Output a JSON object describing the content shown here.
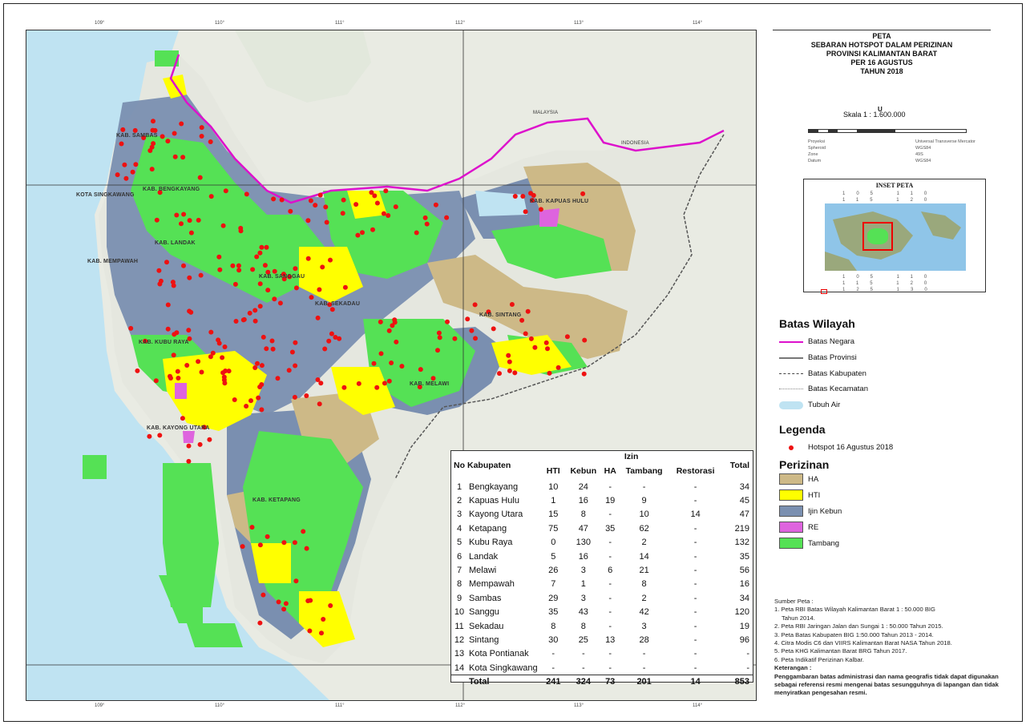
{
  "title": {
    "lines": [
      "PETA",
      "SEBARAN HOTSPOT DALAM PERIZINAN",
      "PROVINSI KALIMANTAN BARAT",
      "PER 16 AGUSTUS",
      "TAHUN 2018"
    ]
  },
  "north_label": "U",
  "scale": "Skala 1 : 1.600.000",
  "inset": {
    "title": "INSET PETA"
  },
  "map": {
    "labels": [
      "KAB. SAMBAS",
      "KOTA SINGKAWANG",
      "KAB. BENGKAYANG",
      "KAB. LANDAK",
      "KAB. MEMPAWAH",
      "KAB. KUBU RAYA",
      "KAB. SANGGAU",
      "KAB. SEKADAU",
      "KAB. SINTANG",
      "KAB. MELAWI",
      "KAB. KAYONG UTARA",
      "KAB. KETAPANG",
      "KAB. KAPUAS HULU",
      "MALAYSIA",
      "INDONESIA"
    ],
    "colors": {
      "ha": "#cdb987",
      "hti": "#ffff00",
      "ijin_kebun": "#7a8fb0",
      "re": "#de64de",
      "tambang": "#55e155",
      "hotspot": "#ee1111",
      "border_negara": "#dd11cc",
      "land": "#e9ebe3",
      "sea": "#bfe3f2"
    }
  },
  "table": {
    "header": {
      "no": "No",
      "kab": "Kabupaten",
      "izin": "Izin",
      "hti": "HTI",
      "kebun": "Kebun",
      "ha": "HA",
      "tambang": "Tambang",
      "restorasi": "Restorasi",
      "total": "Total"
    },
    "rows": [
      {
        "no": "1",
        "kab": "Bengkayang",
        "hti": "10",
        "kebun": "24",
        "ha": "-",
        "tambang": "-",
        "restorasi": "-",
        "total": "34"
      },
      {
        "no": "2",
        "kab": "Kapuas Hulu",
        "hti": "1",
        "kebun": "16",
        "ha": "19",
        "tambang": "9",
        "restorasi": "-",
        "total": "45"
      },
      {
        "no": "3",
        "kab": "Kayong Utara",
        "hti": "15",
        "kebun": "8",
        "ha": "-",
        "tambang": "10",
        "restorasi": "14",
        "total": "47"
      },
      {
        "no": "4",
        "kab": "Ketapang",
        "hti": "75",
        "kebun": "47",
        "ha": "35",
        "tambang": "62",
        "restorasi": "-",
        "total": "219"
      },
      {
        "no": "5",
        "kab": "Kubu Raya",
        "hti": "0",
        "kebun": "130",
        "ha": "-",
        "tambang": "2",
        "restorasi": "-",
        "total": "132"
      },
      {
        "no": "6",
        "kab": "Landak",
        "hti": "5",
        "kebun": "16",
        "ha": "-",
        "tambang": "14",
        "restorasi": "-",
        "total": "35"
      },
      {
        "no": "7",
        "kab": "Melawi",
        "hti": "26",
        "kebun": "3",
        "ha": "6",
        "tambang": "21",
        "restorasi": "-",
        "total": "56"
      },
      {
        "no": "8",
        "kab": "Mempawah",
        "hti": "7",
        "kebun": "1",
        "ha": "-",
        "tambang": "8",
        "restorasi": "-",
        "total": "16"
      },
      {
        "no": "9",
        "kab": "Sambas",
        "hti": "29",
        "kebun": "3",
        "ha": "-",
        "tambang": "2",
        "restorasi": "-",
        "total": "34"
      },
      {
        "no": "10",
        "kab": "Sanggu",
        "hti": "35",
        "kebun": "43",
        "ha": "-",
        "tambang": "42",
        "restorasi": "-",
        "total": "120"
      },
      {
        "no": "11",
        "kab": "Sekadau",
        "hti": "8",
        "kebun": "8",
        "ha": "-",
        "tambang": "3",
        "restorasi": "-",
        "total": "19"
      },
      {
        "no": "12",
        "kab": "Sintang",
        "hti": "30",
        "kebun": "25",
        "ha": "13",
        "tambang": "28",
        "restorasi": "-",
        "total": "96"
      },
      {
        "no": "13",
        "kab": "Kota Pontianak",
        "hti": "-",
        "kebun": "-",
        "ha": "-",
        "tambang": "-",
        "restorasi": "-",
        "total": "-"
      },
      {
        "no": "14",
        "kab": "Kota Singkawang",
        "hti": "-",
        "kebun": "-",
        "ha": "-",
        "tambang": "-",
        "restorasi": "-",
        "total": "-"
      }
    ],
    "total": {
      "label": "Total",
      "hti": "241",
      "kebun": "324",
      "ha": "73",
      "tambang": "201",
      "restorasi": "14",
      "total": "853"
    }
  },
  "legend": {
    "batas_title": "Batas Wilayah",
    "batas_negara": "Batas Negara",
    "batas_provinsi": "Batas Provinsi",
    "batas_kabupaten": "Batas Kabupaten",
    "batas_kecamatan": "Batas Kecamatan",
    "tubuh_air": "Tubuh Air",
    "legenda_title": "Legenda",
    "hotspot": "Hotspot 16 Agustus 2018",
    "perizinan_title": "Perizinan",
    "ha": "HA",
    "hti": "HTI",
    "ijin_kebun": "Ijin Kebun",
    "re": "RE",
    "tambang": "Tambang"
  },
  "sources": {
    "title": "Sumber Peta :",
    "items": [
      "1.  Peta RBI Batas Wilayah Kalimantan Barat 1 : 50.000 BIG",
      "    Tahun 2014.",
      "2. Peta RBI Jaringan Jalan dan Sungai 1 : 50.000 Tahun 2015.",
      "3. Peta Batas Kabupaten BIG 1:50.000 Tahun 2013 - 2014.",
      "4. Citra Modis C6 dan VIIRS Kalimantan Barat NASA Tahun 2018.",
      "5. Peta KHG Kalimantan Barat BRG Tahun 2017.",
      "6. Peta Indikatif Perizinan Kalbar."
    ],
    "keterangan_title": "Keterangan :",
    "keterangan": "Penggambaran batas administrasi dan nama geografis tidak dapat digunakan sebagai referensi resmi mengenai batas sesungguhnya di lapangan dan tidak menyiratkan pengesahan resmi."
  }
}
